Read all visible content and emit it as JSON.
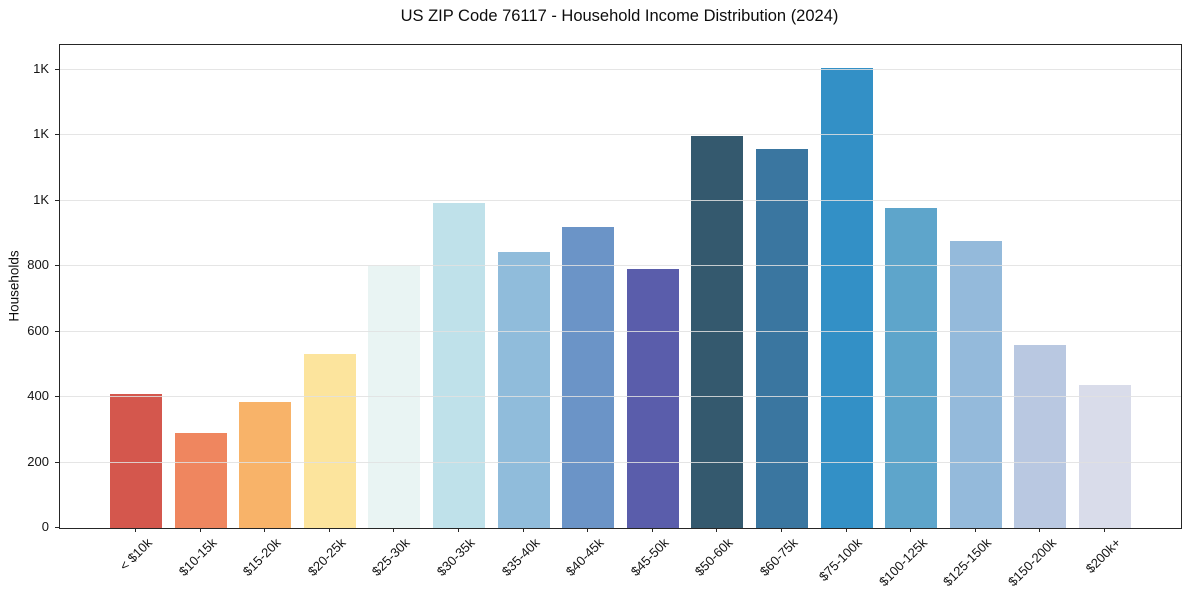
{
  "figure": {
    "title": "US ZIP Code 76117 - Household Income Distribution (2024)"
  },
  "chart_data": {
    "type": "bar",
    "title": "US ZIP Code 76117 - Household Income Distribution (2024)",
    "xlabel": "",
    "ylabel": "Households",
    "categories": [
      "< $10k",
      "$10-15k",
      "$15-20k",
      "$20-25k",
      "$25-30k",
      "$30-35k",
      "$35-40k",
      "$40-45k",
      "$45-50k",
      "$50-60k",
      "$60-75k",
      "$75-100k",
      "$100-125k",
      "$125-150k",
      "$150-200k",
      "$200k+"
    ],
    "values": [
      410,
      290,
      385,
      533,
      800,
      993,
      842,
      921,
      792,
      1197,
      1157,
      1405,
      977,
      878,
      560,
      437
    ],
    "bar_colors": [
      "#d4574d",
      "#ef865f",
      "#f8b369",
      "#fce49d",
      "#e9f4f3",
      "#bfe1ea",
      "#90bcdb",
      "#6b94c7",
      "#5a5dab",
      "#34596e",
      "#3a76a0",
      "#3390c6",
      "#5ea5cb",
      "#94badb",
      "#b9c8e1",
      "#d9dcea"
    ],
    "ylim": [
      0,
      1476
    ],
    "yticks": {
      "values": [
        0,
        200,
        400,
        600,
        800,
        1000,
        1200,
        1400
      ],
      "labels": [
        "0",
        "200",
        "400",
        "600",
        "800",
        "1K",
        "1K",
        "1K"
      ]
    },
    "grid": "horizontal-light-gray",
    "legend": "none",
    "styles": {
      "grid_color": "#e4e4e4",
      "spine_color": "#262626",
      "text_color": "#141414",
      "background": "#ffffff"
    }
  }
}
